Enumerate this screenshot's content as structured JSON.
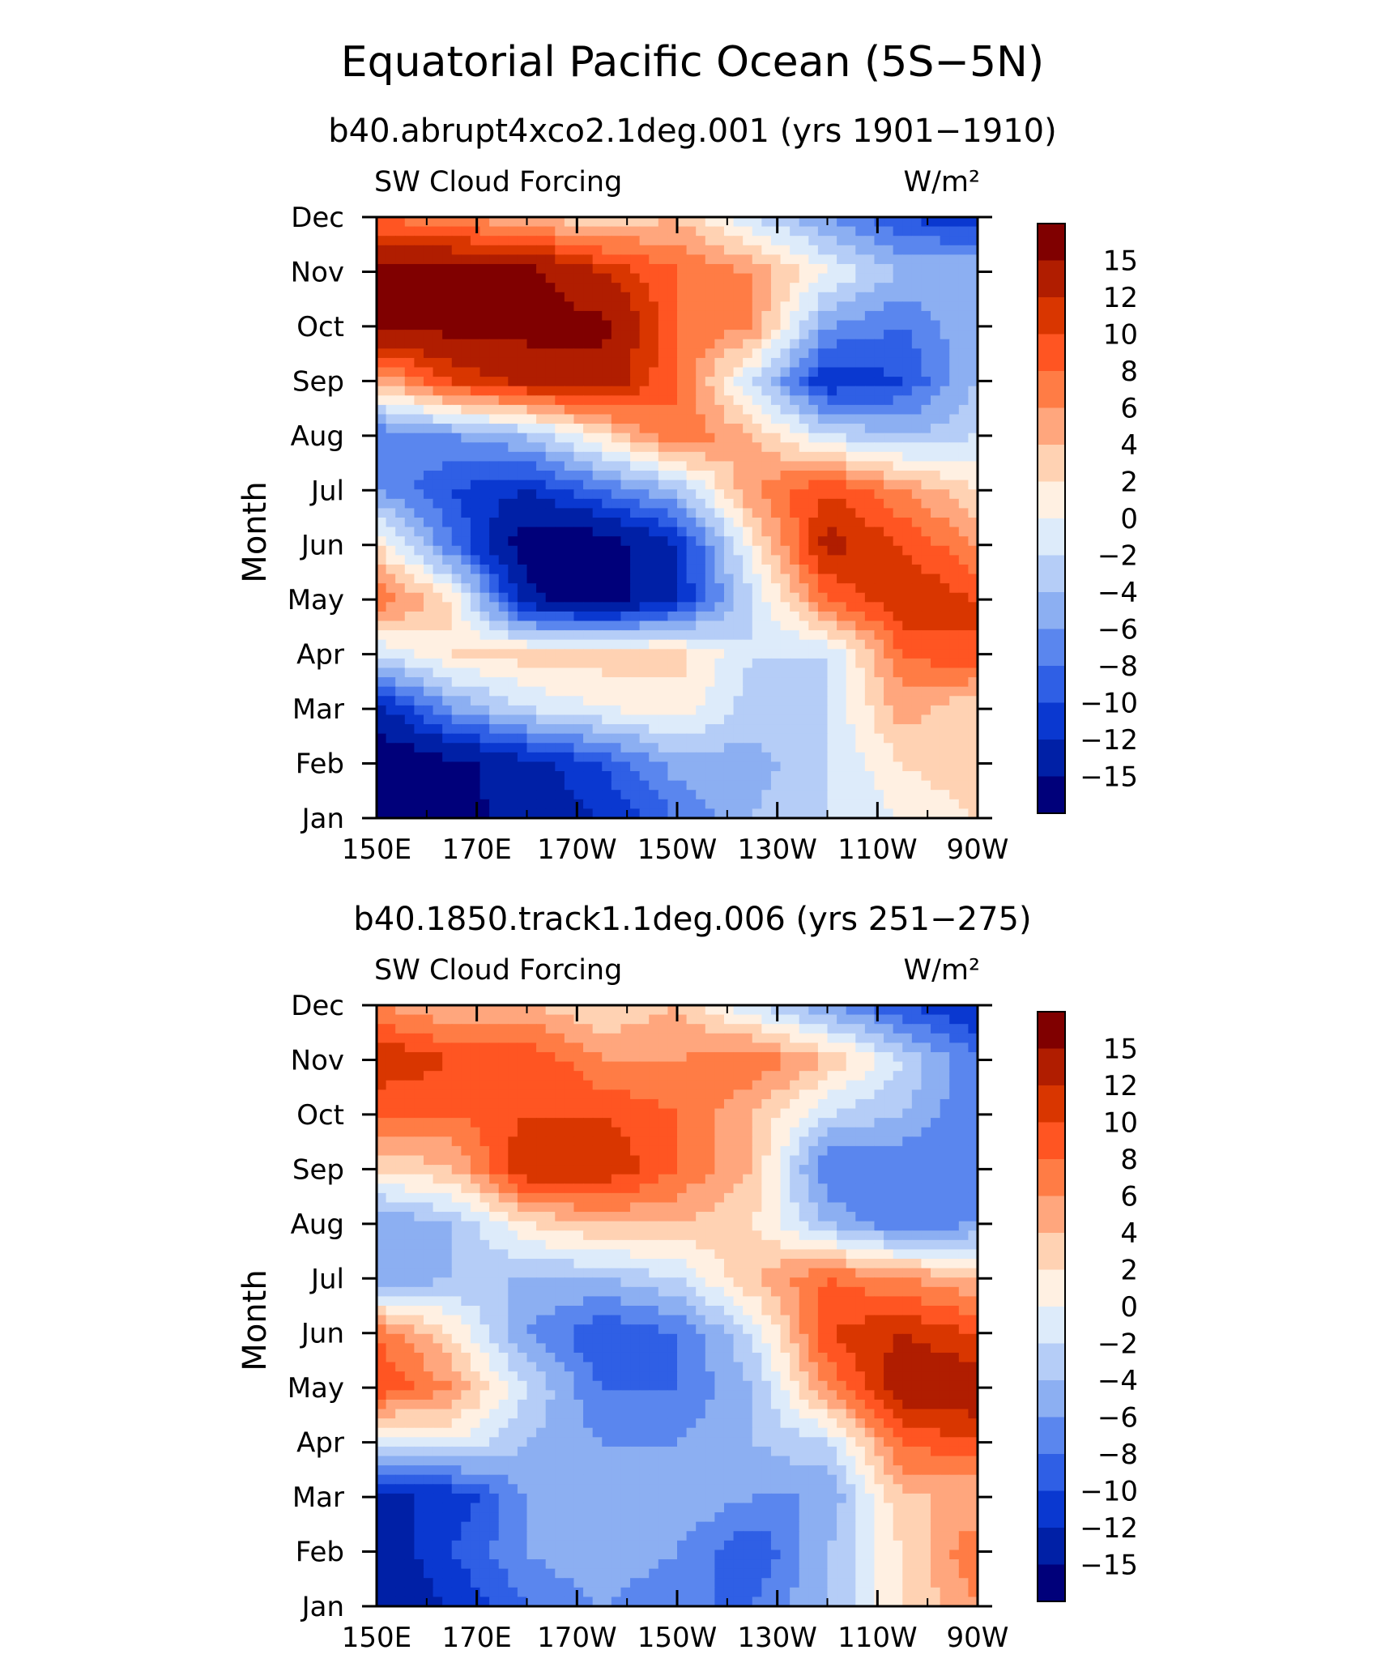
{
  "figure": {
    "title": "Equatorial Pacific Ocean (5S−5N)"
  },
  "colorbar": {
    "labels": [
      "15",
      "12",
      "10",
      "8",
      "6",
      "4",
      "2",
      "0",
      "−2",
      "−4",
      "−6",
      "−8",
      "−10",
      "−12",
      "−15"
    ],
    "colors": [
      "#800000",
      "#b01d00",
      "#d93600",
      "#ff5522",
      "#ff7c45",
      "#ffa67d",
      "#ffd2b3",
      "#fff0e2",
      "#ddebfa",
      "#b5cdf7",
      "#8caff2",
      "#5a86ee",
      "#2f5fe5",
      "#0a38d0",
      "#0020a6",
      "#00007a"
    ]
  },
  "chart_data": [
    {
      "type": "heatmap",
      "title": "b40.abrupt4xco2.1deg.001 (yrs 1901−1910)",
      "left_label": "SW Cloud Forcing",
      "units": "W/m²",
      "ylabel": "Month",
      "x_ticks": [
        "150E",
        "170E",
        "170W",
        "150W",
        "130W",
        "110W",
        "90W"
      ],
      "y_ticks": [
        "Jan",
        "Feb",
        "Mar",
        "Apr",
        "May",
        "Jun",
        "Jul",
        "Aug",
        "Sep",
        "Oct",
        "Nov",
        "Dec"
      ],
      "levels": [
        -15,
        -12,
        -10,
        -8,
        -6,
        -4,
        -2,
        0,
        2,
        4,
        6,
        8,
        10,
        12,
        15
      ],
      "x": [
        150,
        165,
        180,
        195,
        210,
        225,
        240,
        255,
        270
      ],
      "y": [
        1,
        2,
        3,
        4,
        5,
        6,
        7,
        8,
        9,
        10,
        11,
        12
      ],
      "z": [
        [
          -18,
          -16,
          -14,
          -12,
          -8,
          -4,
          -2,
          0,
          2
        ],
        [
          -18,
          -16,
          -13,
          -10,
          -5,
          -5,
          -2,
          2,
          4
        ],
        [
          -13,
          -6,
          -2,
          0,
          1,
          -3,
          -2,
          5,
          2
        ],
        [
          -2,
          2,
          3,
          3,
          3,
          -2,
          -2,
          8,
          10
        ],
        [
          8,
          2,
          -14,
          -17,
          -12,
          -2,
          8,
          12,
          10
        ],
        [
          2,
          -8,
          -17,
          -17,
          -12,
          1,
          13,
          10,
          6
        ],
        [
          -6,
          -10,
          -12,
          -8,
          -4,
          6,
          10,
          6,
          2
        ],
        [
          -8,
          -6,
          -4,
          2,
          8,
          4,
          -2,
          -4,
          -2
        ],
        [
          4,
          10,
          13,
          14,
          8,
          -2,
          -12,
          -10,
          -4
        ],
        [
          16,
          16,
          16,
          16,
          8,
          6,
          -6,
          -8,
          -4
        ],
        [
          16,
          16,
          16,
          12,
          8,
          6,
          0,
          -4,
          -4
        ],
        [
          8,
          6,
          4,
          2,
          4,
          -2,
          -6,
          -10,
          -12
        ]
      ]
    },
    {
      "type": "heatmap",
      "title": "b40.1850.track1.1deg.006 (yrs 251−275)",
      "left_label": "SW Cloud Forcing",
      "units": "W/m²",
      "ylabel": "Month",
      "x_ticks": [
        "150E",
        "170E",
        "170W",
        "150W",
        "130W",
        "110W",
        "90W"
      ],
      "y_ticks": [
        "Jan",
        "Feb",
        "Mar",
        "Apr",
        "May",
        "Jun",
        "Jul",
        "Aug",
        "Sep",
        "Oct",
        "Nov",
        "Dec"
      ],
      "levels": [
        -15,
        -12,
        -10,
        -8,
        -6,
        -4,
        -2,
        0,
        2,
        4,
        6,
        8,
        10,
        12,
        15
      ],
      "x": [
        150,
        165,
        180,
        195,
        210,
        225,
        240,
        255,
        270
      ],
      "y": [
        1,
        2,
        3,
        4,
        5,
        6,
        7,
        8,
        9,
        10,
        11,
        12
      ],
      "z": [
        [
          -14,
          -12,
          -8,
          -6,
          -8,
          -8,
          -4,
          2,
          6
        ],
        [
          -14,
          -10,
          -6,
          -4,
          -6,
          -10,
          -4,
          2,
          8
        ],
        [
          -12,
          -12,
          -6,
          -4,
          -4,
          -6,
          -6,
          4,
          4
        ],
        [
          -2,
          0,
          -4,
          -6,
          -6,
          -4,
          -2,
          8,
          10
        ],
        [
          10,
          6,
          -2,
          -8,
          -8,
          -4,
          6,
          14,
          14
        ],
        [
          8,
          2,
          -6,
          -10,
          -8,
          -2,
          10,
          12,
          10
        ],
        [
          -6,
          -4,
          -4,
          -4,
          -2,
          4,
          8,
          6,
          4
        ],
        [
          -6,
          -4,
          2,
          4,
          4,
          2,
          -4,
          -8,
          -6
        ],
        [
          2,
          4,
          12,
          12,
          8,
          4,
          -8,
          -8,
          -8
        ],
        [
          8,
          8,
          10,
          10,
          8,
          4,
          -2,
          -4,
          -8
        ],
        [
          12,
          10,
          10,
          6,
          6,
          8,
          4,
          -2,
          -8
        ],
        [
          6,
          4,
          4,
          2,
          4,
          -2,
          -6,
          -10,
          -12
        ]
      ]
    }
  ]
}
